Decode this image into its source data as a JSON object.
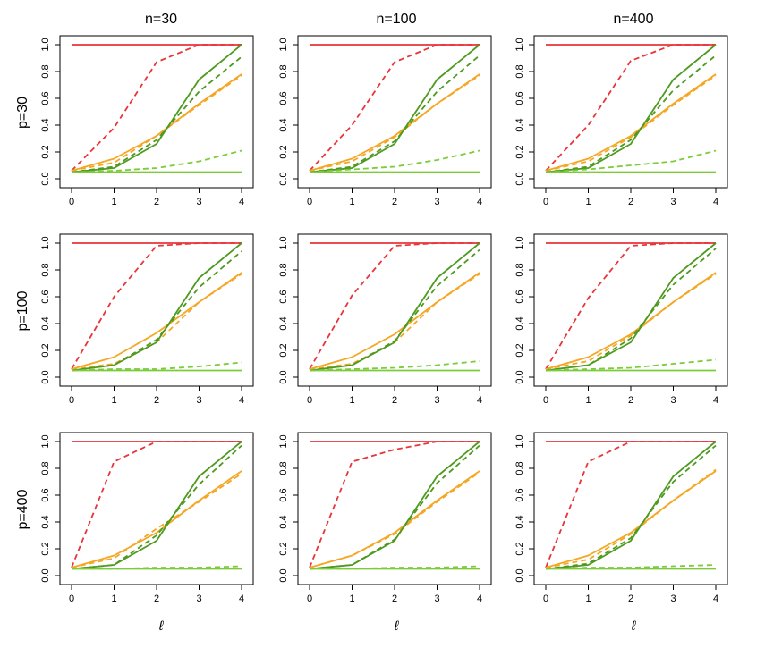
{
  "chart_data": {
    "type": "line",
    "layout": "3x3 grid of panels",
    "column_titles": [
      "n=30",
      "n=100",
      "n=400"
    ],
    "row_titles": [
      "p=30",
      "p=100",
      "p=400"
    ],
    "xlabel": "ℓ",
    "x": [
      0,
      1,
      2,
      3,
      4
    ],
    "xlim": [
      0,
      4
    ],
    "ylim": [
      0,
      1
    ],
    "x_ticks": [
      "0",
      "1",
      "2",
      "3",
      "4"
    ],
    "y_ticks": [
      "0.0",
      "0.2",
      "0.4",
      "0.6",
      "0.8",
      "1.0"
    ],
    "grid": false,
    "legend": "none",
    "colors": {
      "red": "#e8353a",
      "orange": "#f5a623",
      "dark_green": "#4d9a1f",
      "light_green": "#7ccc3a"
    },
    "panels": [
      {
        "row": 0,
        "col": 0,
        "series": [
          {
            "color": "red",
            "dash": false,
            "values": [
              1.0,
              1.0,
              1.0,
              1.0,
              1.0
            ]
          },
          {
            "color": "red",
            "dash": true,
            "values": [
              0.06,
              0.38,
              0.87,
              1.0,
              1.0
            ]
          },
          {
            "color": "orange",
            "dash": false,
            "values": [
              0.06,
              0.15,
              0.32,
              0.56,
              0.78
            ]
          },
          {
            "color": "orange",
            "dash": true,
            "values": [
              0.06,
              0.12,
              0.32,
              0.55,
              0.77
            ]
          },
          {
            "color": "dark_green",
            "dash": false,
            "values": [
              0.05,
              0.08,
              0.26,
              0.74,
              1.0
            ]
          },
          {
            "color": "dark_green",
            "dash": true,
            "values": [
              0.05,
              0.09,
              0.29,
              0.65,
              0.91
            ]
          },
          {
            "color": "light_green",
            "dash": false,
            "values": [
              0.05,
              0.05,
              0.05,
              0.05,
              0.05
            ]
          },
          {
            "color": "light_green",
            "dash": true,
            "values": [
              0.05,
              0.06,
              0.08,
              0.13,
              0.21
            ]
          }
        ]
      },
      {
        "row": 0,
        "col": 1,
        "series": [
          {
            "color": "red",
            "dash": false,
            "values": [
              1.0,
              1.0,
              1.0,
              1.0,
              1.0
            ]
          },
          {
            "color": "red",
            "dash": true,
            "values": [
              0.06,
              0.4,
              0.87,
              1.0,
              1.0
            ]
          },
          {
            "color": "orange",
            "dash": false,
            "values": [
              0.06,
              0.15,
              0.32,
              0.56,
              0.78
            ]
          },
          {
            "color": "orange",
            "dash": true,
            "values": [
              0.06,
              0.13,
              0.31,
              0.56,
              0.77
            ]
          },
          {
            "color": "dark_green",
            "dash": false,
            "values": [
              0.05,
              0.08,
              0.26,
              0.74,
              1.0
            ]
          },
          {
            "color": "dark_green",
            "dash": true,
            "values": [
              0.05,
              0.09,
              0.28,
              0.65,
              0.92
            ]
          },
          {
            "color": "light_green",
            "dash": false,
            "values": [
              0.05,
              0.05,
              0.05,
              0.05,
              0.05
            ]
          },
          {
            "color": "light_green",
            "dash": true,
            "values": [
              0.05,
              0.07,
              0.09,
              0.14,
              0.21
            ]
          }
        ]
      },
      {
        "row": 0,
        "col": 2,
        "series": [
          {
            "color": "red",
            "dash": false,
            "values": [
              1.0,
              1.0,
              1.0,
              1.0,
              1.0
            ]
          },
          {
            "color": "red",
            "dash": true,
            "values": [
              0.06,
              0.4,
              0.88,
              1.0,
              1.0
            ]
          },
          {
            "color": "orange",
            "dash": false,
            "values": [
              0.06,
              0.15,
              0.32,
              0.56,
              0.78
            ]
          },
          {
            "color": "orange",
            "dash": true,
            "values": [
              0.06,
              0.13,
              0.31,
              0.55,
              0.77
            ]
          },
          {
            "color": "dark_green",
            "dash": false,
            "values": [
              0.05,
              0.08,
              0.26,
              0.74,
              1.0
            ]
          },
          {
            "color": "dark_green",
            "dash": true,
            "values": [
              0.05,
              0.09,
              0.29,
              0.66,
              0.92
            ]
          },
          {
            "color": "light_green",
            "dash": false,
            "values": [
              0.05,
              0.05,
              0.05,
              0.05,
              0.05
            ]
          },
          {
            "color": "light_green",
            "dash": true,
            "values": [
              0.05,
              0.07,
              0.1,
              0.13,
              0.21
            ]
          }
        ]
      },
      {
        "row": 1,
        "col": 0,
        "series": [
          {
            "color": "red",
            "dash": false,
            "values": [
              1.0,
              1.0,
              1.0,
              1.0,
              1.0
            ]
          },
          {
            "color": "red",
            "dash": true,
            "values": [
              0.06,
              0.6,
              0.98,
              1.0,
              1.0
            ]
          },
          {
            "color": "orange",
            "dash": false,
            "values": [
              0.06,
              0.15,
              0.33,
              0.56,
              0.78
            ]
          },
          {
            "color": "orange",
            "dash": true,
            "values": [
              0.06,
              0.1,
              0.26,
              0.56,
              0.77
            ]
          },
          {
            "color": "dark_green",
            "dash": false,
            "values": [
              0.05,
              0.09,
              0.26,
              0.74,
              1.0
            ]
          },
          {
            "color": "dark_green",
            "dash": true,
            "values": [
              0.05,
              0.09,
              0.28,
              0.67,
              0.94
            ]
          },
          {
            "color": "light_green",
            "dash": false,
            "values": [
              0.05,
              0.05,
              0.05,
              0.05,
              0.05
            ]
          },
          {
            "color": "light_green",
            "dash": true,
            "values": [
              0.05,
              0.06,
              0.06,
              0.08,
              0.11
            ]
          }
        ]
      },
      {
        "row": 1,
        "col": 1,
        "series": [
          {
            "color": "red",
            "dash": false,
            "values": [
              1.0,
              1.0,
              1.0,
              1.0,
              1.0
            ]
          },
          {
            "color": "red",
            "dash": true,
            "values": [
              0.06,
              0.61,
              0.98,
              1.0,
              1.0
            ]
          },
          {
            "color": "orange",
            "dash": false,
            "values": [
              0.06,
              0.15,
              0.32,
              0.56,
              0.78
            ]
          },
          {
            "color": "orange",
            "dash": true,
            "values": [
              0.06,
              0.1,
              0.26,
              0.56,
              0.77
            ]
          },
          {
            "color": "dark_green",
            "dash": false,
            "values": [
              0.05,
              0.09,
              0.26,
              0.74,
              1.0
            ]
          },
          {
            "color": "dark_green",
            "dash": true,
            "values": [
              0.05,
              0.09,
              0.27,
              0.68,
              0.95
            ]
          },
          {
            "color": "light_green",
            "dash": false,
            "values": [
              0.05,
              0.05,
              0.05,
              0.05,
              0.05
            ]
          },
          {
            "color": "light_green",
            "dash": true,
            "values": [
              0.05,
              0.06,
              0.07,
              0.09,
              0.12
            ]
          }
        ]
      },
      {
        "row": 1,
        "col": 2,
        "series": [
          {
            "color": "red",
            "dash": false,
            "values": [
              1.0,
              1.0,
              1.0,
              1.0,
              1.0
            ]
          },
          {
            "color": "red",
            "dash": true,
            "values": [
              0.06,
              0.59,
              0.98,
              1.0,
              1.0
            ]
          },
          {
            "color": "orange",
            "dash": false,
            "values": [
              0.06,
              0.15,
              0.32,
              0.56,
              0.78
            ]
          },
          {
            "color": "orange",
            "dash": true,
            "values": [
              0.06,
              0.12,
              0.31,
              0.56,
              0.77
            ]
          },
          {
            "color": "dark_green",
            "dash": false,
            "values": [
              0.05,
              0.09,
              0.26,
              0.74,
              1.0
            ]
          },
          {
            "color": "dark_green",
            "dash": true,
            "values": [
              0.05,
              0.09,
              0.29,
              0.69,
              0.96
            ]
          },
          {
            "color": "light_green",
            "dash": false,
            "values": [
              0.05,
              0.05,
              0.05,
              0.05,
              0.05
            ]
          },
          {
            "color": "light_green",
            "dash": true,
            "values": [
              0.05,
              0.06,
              0.07,
              0.1,
              0.13
            ]
          }
        ]
      },
      {
        "row": 2,
        "col": 0,
        "series": [
          {
            "color": "red",
            "dash": false,
            "values": [
              1.0,
              1.0,
              1.0,
              1.0,
              1.0
            ]
          },
          {
            "color": "red",
            "dash": true,
            "values": [
              0.06,
              0.85,
              1.0,
              1.0,
              1.0
            ]
          },
          {
            "color": "orange",
            "dash": false,
            "values": [
              0.06,
              0.15,
              0.32,
              0.56,
              0.78
            ]
          },
          {
            "color": "orange",
            "dash": true,
            "values": [
              0.06,
              0.13,
              0.35,
              0.55,
              0.76
            ]
          },
          {
            "color": "dark_green",
            "dash": false,
            "values": [
              0.05,
              0.08,
              0.26,
              0.74,
              1.0
            ]
          },
          {
            "color": "dark_green",
            "dash": true,
            "values": [
              0.05,
              0.08,
              0.3,
              0.68,
              0.97
            ]
          },
          {
            "color": "light_green",
            "dash": false,
            "values": [
              0.05,
              0.05,
              0.05,
              0.05,
              0.05
            ]
          },
          {
            "color": "light_green",
            "dash": true,
            "values": [
              0.05,
              0.05,
              0.06,
              0.06,
              0.07
            ]
          }
        ]
      },
      {
        "row": 2,
        "col": 1,
        "series": [
          {
            "color": "red",
            "dash": false,
            "values": [
              1.0,
              1.0,
              1.0,
              1.0,
              1.0
            ]
          },
          {
            "color": "red",
            "dash": true,
            "values": [
              0.06,
              0.85,
              0.94,
              1.0,
              1.0
            ]
          },
          {
            "color": "orange",
            "dash": false,
            "values": [
              0.06,
              0.15,
              0.32,
              0.56,
              0.78
            ]
          },
          {
            "color": "orange",
            "dash": true,
            "values": [
              0.06,
              0.15,
              0.31,
              0.55,
              0.77
            ]
          },
          {
            "color": "dark_green",
            "dash": false,
            "values": [
              0.05,
              0.08,
              0.26,
              0.74,
              1.0
            ]
          },
          {
            "color": "dark_green",
            "dash": true,
            "values": [
              0.05,
              0.08,
              0.27,
              0.69,
              0.97
            ]
          },
          {
            "color": "light_green",
            "dash": false,
            "values": [
              0.05,
              0.05,
              0.05,
              0.05,
              0.05
            ]
          },
          {
            "color": "light_green",
            "dash": true,
            "values": [
              0.05,
              0.05,
              0.06,
              0.06,
              0.07
            ]
          }
        ]
      },
      {
        "row": 2,
        "col": 2,
        "series": [
          {
            "color": "red",
            "dash": false,
            "values": [
              1.0,
              1.0,
              1.0,
              1.0,
              1.0
            ]
          },
          {
            "color": "red",
            "dash": true,
            "values": [
              0.06,
              0.85,
              1.0,
              1.0,
              1.0
            ]
          },
          {
            "color": "orange",
            "dash": false,
            "values": [
              0.06,
              0.15,
              0.32,
              0.56,
              0.78
            ]
          },
          {
            "color": "orange",
            "dash": true,
            "values": [
              0.06,
              0.12,
              0.31,
              0.56,
              0.79
            ]
          },
          {
            "color": "dark_green",
            "dash": false,
            "values": [
              0.05,
              0.08,
              0.26,
              0.74,
              1.0
            ]
          },
          {
            "color": "dark_green",
            "dash": true,
            "values": [
              0.05,
              0.09,
              0.28,
              0.7,
              0.97
            ]
          },
          {
            "color": "light_green",
            "dash": false,
            "values": [
              0.05,
              0.05,
              0.05,
              0.05,
              0.05
            ]
          },
          {
            "color": "light_green",
            "dash": true,
            "values": [
              0.05,
              0.06,
              0.06,
              0.07,
              0.08
            ]
          }
        ]
      }
    ]
  }
}
